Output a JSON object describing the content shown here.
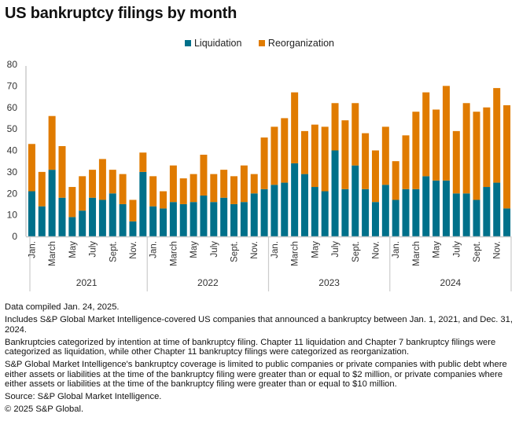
{
  "chart_data": {
    "type": "bar",
    "stacked": true,
    "title": "US bankruptcy filings by month",
    "xlabel": "",
    "ylabel": "",
    "ylim": [
      0,
      80
    ],
    "yticks": [
      0,
      10,
      20,
      30,
      40,
      50,
      60,
      70,
      80
    ],
    "grid": false,
    "legend_position": "top-center",
    "years": [
      "2021",
      "2022",
      "2023",
      "2024"
    ],
    "month_tick_labels": [
      "Jan.",
      "March",
      "May",
      "July",
      "Sept.",
      "Nov."
    ],
    "categories": [
      "Jan. 2021",
      "Feb. 2021",
      "March 2021",
      "April 2021",
      "May 2021",
      "June 2021",
      "July 2021",
      "Aug. 2021",
      "Sept. 2021",
      "Oct. 2021",
      "Nov. 2021",
      "Dec. 2021",
      "Jan. 2022",
      "Feb. 2022",
      "March 2022",
      "April 2022",
      "May 2022",
      "June 2022",
      "July 2022",
      "Aug. 2022",
      "Sept. 2022",
      "Oct. 2022",
      "Nov. 2022",
      "Dec. 2022",
      "Jan. 2023",
      "Feb. 2023",
      "March 2023",
      "April 2023",
      "May 2023",
      "June 2023",
      "July 2023",
      "Aug. 2023",
      "Sept. 2023",
      "Oct. 2023",
      "Nov. 2023",
      "Dec. 2023",
      "Jan. 2024",
      "Feb. 2024",
      "March 2024",
      "April 2024",
      "May 2024",
      "June 2024",
      "July 2024",
      "Aug. 2024",
      "Sept. 2024",
      "Oct. 2024",
      "Nov. 2024",
      "Dec. 2024"
    ],
    "series": [
      {
        "name": "Liquidation",
        "color": "#00708a",
        "values": [
          21,
          14,
          31,
          18,
          9,
          12,
          18,
          17,
          20,
          15,
          7,
          30,
          14,
          13,
          16,
          15,
          16,
          19,
          16,
          18,
          15,
          16,
          20,
          22,
          24,
          25,
          34,
          29,
          23,
          21,
          40,
          22,
          33,
          22,
          16,
          24,
          17,
          22,
          22,
          28,
          26,
          26,
          20,
          20,
          17,
          23,
          25,
          13
        ]
      },
      {
        "name": "Reorganization",
        "color": "#e07b00",
        "values": [
          22,
          16,
          25,
          24,
          14,
          16,
          13,
          19,
          11,
          14,
          10,
          9,
          14,
          8,
          17,
          12,
          13,
          19,
          13,
          13,
          13,
          17,
          9,
          24,
          27,
          30,
          33,
          20,
          29,
          30,
          22,
          32,
          29,
          26,
          24,
          27,
          18,
          25,
          36,
          39,
          33,
          44,
          29,
          42,
          41,
          37,
          44,
          48
        ]
      }
    ]
  },
  "notes": [
    "Data compiled Jan. 24, 2025.",
    "Includes S&P Global Market Intelligence-covered US companies that announced a bankruptcy between Jan. 1, 2021, and Dec. 31, 2024.",
    "Bankruptcies categorized by intention at time of bankruptcy filing. Chapter 11 liquidation and Chapter 7 bankruptcy filings were categorized as liquidation, while other Chapter 11 bankruptcy filings were categorized as reorganization.",
    "S&P Global Market Intelligence's bankruptcy coverage is limited to public companies or private companies with public debt where either assets or liabilities at the time of the bankruptcy filing were greater than or equal to $2 million, or private companies where either assets or liabilities at the time of the bankruptcy filing were greater than or equal to $10 million.",
    "Source: S&P Global Market Intelligence.",
    "© 2025 S&P Global."
  ]
}
